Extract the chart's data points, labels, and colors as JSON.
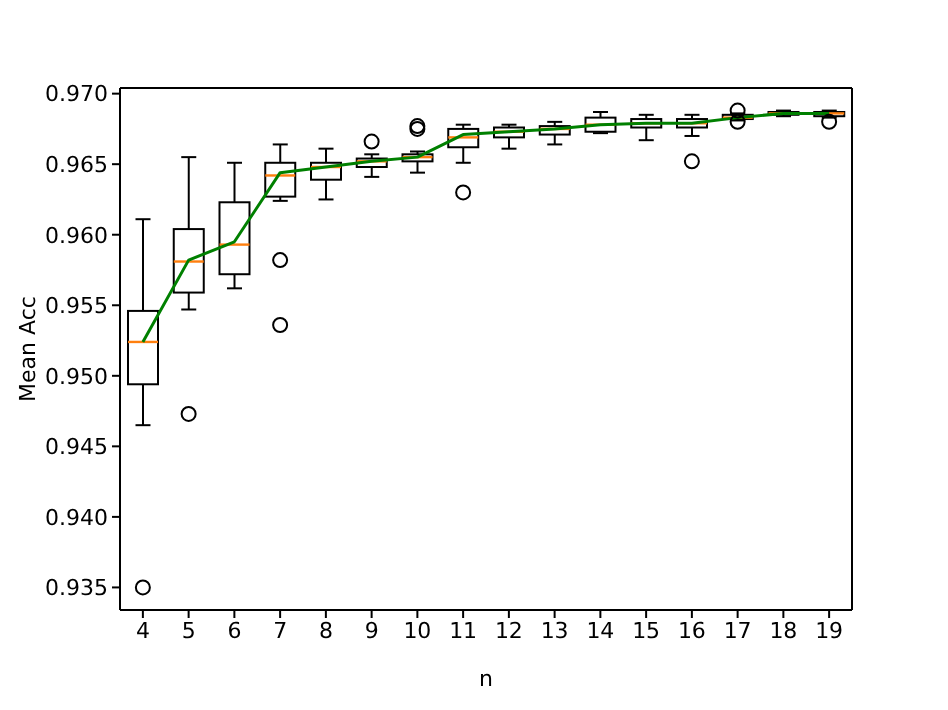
{
  "chart_data": {
    "type": "box",
    "xlabel": "n",
    "ylabel": "Mean Acc",
    "categories": [
      "4",
      "5",
      "6",
      "7",
      "8",
      "9",
      "10",
      "11",
      "12",
      "13",
      "14",
      "15",
      "16",
      "17",
      "18",
      "19"
    ],
    "ylim": [
      0.9334,
      0.9704
    ],
    "yticks": [
      0.935,
      {
        "value": 0.94,
        "label": "0.940"
      },
      0.945,
      {
        "value": 0.95,
        "label": "0.950"
      },
      0.955,
      {
        "value": 0.96,
        "label": "0.960"
      },
      0.965,
      {
        "value": 0.97,
        "label": "0.970"
      }
    ],
    "grid": false,
    "legend": false,
    "series": [
      {
        "color": "#000000",
        "boxes": [
          {
            "low": 0.9465,
            "q1": 0.9494,
            "median": 0.9524,
            "q3": 0.9546,
            "high": 0.9611,
            "outliers": [
              0.935
            ]
          },
          {
            "low": 0.9547,
            "q1": 0.9559,
            "median": 0.9581,
            "q3": 0.9604,
            "high": 0.9655,
            "outliers": [
              0.9473
            ]
          },
          {
            "low": 0.9562,
            "q1": 0.9572,
            "median": 0.9593,
            "q3": 0.9623,
            "high": 0.9651
          },
          {
            "low": 0.9624,
            "q1": 0.9627,
            "median": 0.9642,
            "q3": 0.9651,
            "high": 0.9664,
            "outliers": [
              0.9582,
              0.9536
            ]
          },
          {
            "low": 0.9625,
            "q1": 0.9639,
            "median": 0.9648,
            "q3": 0.9651,
            "high": 0.9661
          },
          {
            "low": 0.9641,
            "q1": 0.9648,
            "median": 0.9652,
            "q3": 0.9654,
            "high": 0.9657,
            "outliers": [
              0.9666
            ]
          },
          {
            "low": 0.9644,
            "q1": 0.9652,
            "median": 0.9655,
            "q3": 0.9657,
            "high": 0.9659,
            "outliers": [
              0.9677,
              0.9675
            ]
          },
          {
            "low": 0.9651,
            "q1": 0.9662,
            "median": 0.9669,
            "q3": 0.9675,
            "high": 0.9678,
            "outliers": [
              0.963
            ]
          },
          {
            "low": 0.9661,
            "q1": 0.9669,
            "median": 0.9673,
            "q3": 0.9676,
            "high": 0.9678
          },
          {
            "low": 0.9664,
            "q1": 0.9671,
            "median": 0.9675,
            "q3": 0.9677,
            "high": 0.968
          },
          {
            "low": 0.9672,
            "q1": 0.9673,
            "median": 0.9678,
            "q3": 0.9683,
            "high": 0.9687
          },
          {
            "low": 0.9667,
            "q1": 0.9676,
            "median": 0.9679,
            "q3": 0.9682,
            "high": 0.9685
          },
          {
            "low": 0.967,
            "q1": 0.9676,
            "median": 0.9679,
            "q3": 0.9682,
            "high": 0.9685,
            "outliers": [
              0.9652
            ]
          },
          {
            "low": 0.9681,
            "q1": 0.9682,
            "median": 0.9683,
            "q3": 0.9685,
            "high": 0.9686,
            "outliers": [
              0.9688,
              0.968
            ]
          },
          {
            "low": 0.9684,
            "q1": 0.9685,
            "median": 0.9686,
            "q3": 0.9687,
            "high": 0.9688
          },
          {
            "low": 0.9683,
            "q1": 0.9684,
            "median": 0.9686,
            "q3": 0.9687,
            "high": 0.9688,
            "outliers": [
              0.968
            ]
          }
        ]
      },
      {
        "type": "line",
        "color": "#008000",
        "values": [
          0.9524,
          0.9582,
          0.9595,
          0.9644,
          0.9648,
          0.9652,
          0.9655,
          0.9671,
          0.9673,
          0.9675,
          0.9678,
          0.9679,
          0.9679,
          0.9683,
          0.9686,
          0.9686
        ]
      }
    ]
  }
}
